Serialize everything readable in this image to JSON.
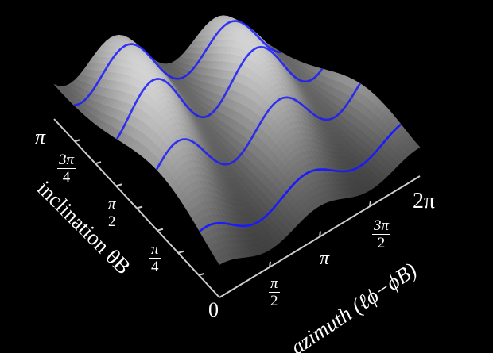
{
  "chart_data": {
    "type": "surface",
    "title": "",
    "xlabel": "azimuth (ℓϕ−ϕB)",
    "ylabel": "inclination θB",
    "xlim": [
      "0",
      "2π"
    ],
    "ylim": [
      "0",
      "π"
    ],
    "x_ticks": [
      {
        "num": "π",
        "den": "2"
      },
      {
        "num": "π",
        "den": ""
      },
      {
        "num": "3π",
        "den": "2"
      },
      {
        "num": "2π",
        "den": ""
      }
    ],
    "y_ticks": [
      {
        "num": "0",
        "den": ""
      },
      {
        "num": "π",
        "den": "4"
      },
      {
        "num": "π",
        "den": "2"
      },
      {
        "num": "3π",
        "den": "4"
      },
      {
        "num": "π",
        "den": ""
      }
    ],
    "surface_color": "grayscale",
    "curve_color": "#1a1aff",
    "background": "#000000",
    "grid": false
  }
}
